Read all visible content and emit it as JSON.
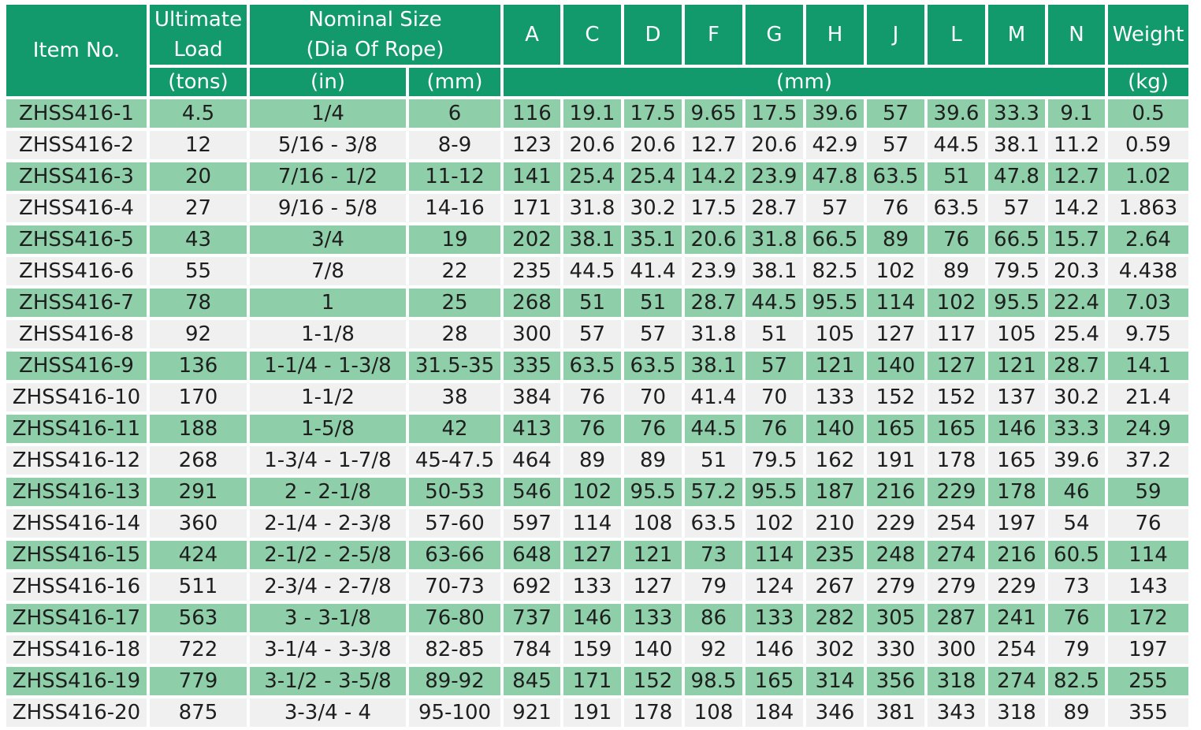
{
  "header": {
    "item_no": "Item No.",
    "ultimate_load_line1": "Ultimate",
    "ultimate_load_line2": "Load",
    "nominal_size_line1": "Nominal Size",
    "nominal_size_line2": "(Dia Of Rope)",
    "dim_columns": [
      "A",
      "C",
      "D",
      "F",
      "G",
      "H",
      "J",
      "L",
      "M",
      "N"
    ],
    "weight": "Weight",
    "unit_tons": "(tons)",
    "unit_in": "(in)",
    "unit_mm": "(mm)",
    "unit_dims": "(mm)",
    "unit_kg": "(kg)"
  },
  "rows": [
    [
      "ZHSS416-1",
      "4.5",
      "1/4",
      "6",
      "116",
      "19.1",
      "17.5",
      "9.65",
      "17.5",
      "39.6",
      "57",
      "39.6",
      "33.3",
      "9.1",
      "0.5"
    ],
    [
      "ZHSS416-2",
      "12",
      "5/16 - 3/8",
      "8-9",
      "123",
      "20.6",
      "20.6",
      "12.7",
      "20.6",
      "42.9",
      "57",
      "44.5",
      "38.1",
      "11.2",
      "0.59"
    ],
    [
      "ZHSS416-3",
      "20",
      "7/16 - 1/2",
      "11-12",
      "141",
      "25.4",
      "25.4",
      "14.2",
      "23.9",
      "47.8",
      "63.5",
      "51",
      "47.8",
      "12.7",
      "1.02"
    ],
    [
      "ZHSS416-4",
      "27",
      "9/16 - 5/8",
      "14-16",
      "171",
      "31.8",
      "30.2",
      "17.5",
      "28.7",
      "57",
      "76",
      "63.5",
      "57",
      "14.2",
      "1.863"
    ],
    [
      "ZHSS416-5",
      "43",
      "3/4",
      "19",
      "202",
      "38.1",
      "35.1",
      "20.6",
      "31.8",
      "66.5",
      "89",
      "76",
      "66.5",
      "15.7",
      "2.64"
    ],
    [
      "ZHSS416-6",
      "55",
      "7/8",
      "22",
      "235",
      "44.5",
      "41.4",
      "23.9",
      "38.1",
      "82.5",
      "102",
      "89",
      "79.5",
      "20.3",
      "4.438"
    ],
    [
      "ZHSS416-7",
      "78",
      "1",
      "25",
      "268",
      "51",
      "51",
      "28.7",
      "44.5",
      "95.5",
      "114",
      "102",
      "95.5",
      "22.4",
      "7.03"
    ],
    [
      "ZHSS416-8",
      "92",
      "1-1/8",
      "28",
      "300",
      "57",
      "57",
      "31.8",
      "51",
      "105",
      "127",
      "117",
      "105",
      "25.4",
      "9.75"
    ],
    [
      "ZHSS416-9",
      "136",
      "1-1/4 - 1-3/8",
      "31.5-35",
      "335",
      "63.5",
      "63.5",
      "38.1",
      "57",
      "121",
      "140",
      "127",
      "121",
      "28.7",
      "14.1"
    ],
    [
      "ZHSS416-10",
      "170",
      "1-1/2",
      "38",
      "384",
      "76",
      "70",
      "41.4",
      "70",
      "133",
      "152",
      "152",
      "137",
      "30.2",
      "21.4"
    ],
    [
      "ZHSS416-11",
      "188",
      "1-5/8",
      "42",
      "413",
      "76",
      "76",
      "44.5",
      "76",
      "140",
      "165",
      "165",
      "146",
      "33.3",
      "24.9"
    ],
    [
      "ZHSS416-12",
      "268",
      "1-3/4 - 1-7/8",
      "45-47.5",
      "464",
      "89",
      "89",
      "51",
      "79.5",
      "162",
      "191",
      "178",
      "165",
      "39.6",
      "37.2"
    ],
    [
      "ZHSS416-13",
      "291",
      "2 - 2-1/8",
      "50-53",
      "546",
      "102",
      "95.5",
      "57.2",
      "95.5",
      "187",
      "216",
      "229",
      "178",
      "46",
      "59"
    ],
    [
      "ZHSS416-14",
      "360",
      "2-1/4 - 2-3/8",
      "57-60",
      "597",
      "114",
      "108",
      "63.5",
      "102",
      "210",
      "229",
      "254",
      "197",
      "54",
      "76"
    ],
    [
      "ZHSS416-15",
      "424",
      "2-1/2 - 2-5/8",
      "63-66",
      "648",
      "127",
      "121",
      "73",
      "114",
      "235",
      "248",
      "274",
      "216",
      "60.5",
      "114"
    ],
    [
      "ZHSS416-16",
      "511",
      "2-3/4 - 2-7/8",
      "70-73",
      "692",
      "133",
      "127",
      "79",
      "124",
      "267",
      "279",
      "279",
      "229",
      "73",
      "143"
    ],
    [
      "ZHSS416-17",
      "563",
      "3 - 3-1/8",
      "76-80",
      "737",
      "146",
      "133",
      "86",
      "133",
      "282",
      "305",
      "287",
      "241",
      "76",
      "172"
    ],
    [
      "ZHSS416-18",
      "722",
      "3-1/4 - 3-3/8",
      "82-85",
      "784",
      "159",
      "140",
      "92",
      "146",
      "302",
      "330",
      "300",
      "254",
      "79",
      "197"
    ],
    [
      "ZHSS416-19",
      "779",
      "3-1/2 - 3-5/8",
      "89-92",
      "845",
      "171",
      "152",
      "98.5",
      "165",
      "314",
      "356",
      "318",
      "274",
      "82.5",
      "255"
    ],
    [
      "ZHSS416-20",
      "875",
      "3-3/4 - 4",
      "95-100",
      "921",
      "191",
      "178",
      "108",
      "184",
      "346",
      "381",
      "343",
      "318",
      "89",
      "355"
    ]
  ],
  "colors": {
    "header_bg": "#139a6c",
    "header_text": "#ffffff",
    "row_green": "#8ecfaa",
    "row_light": "#f0f0f0"
  }
}
